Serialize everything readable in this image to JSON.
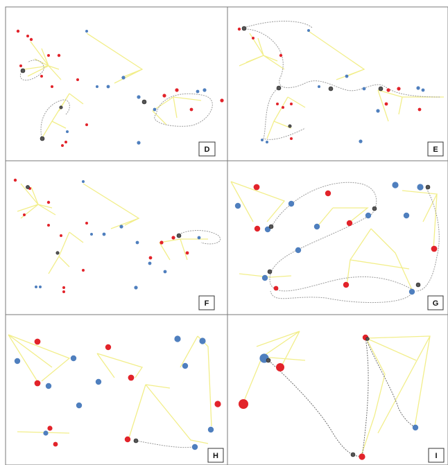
{
  "figure": {
    "panels": [
      {
        "label": "D"
      },
      {
        "label": "E"
      },
      {
        "label": "F"
      },
      {
        "label": "G"
      },
      {
        "label": "H"
      },
      {
        "label": "I"
      }
    ],
    "colors": {
      "red_node": "#e2232a",
      "blue_node": "#4f7fbe",
      "edge": "#f2ee8a",
      "route": "#9a9a9a",
      "agent": "#555555"
    }
  }
}
